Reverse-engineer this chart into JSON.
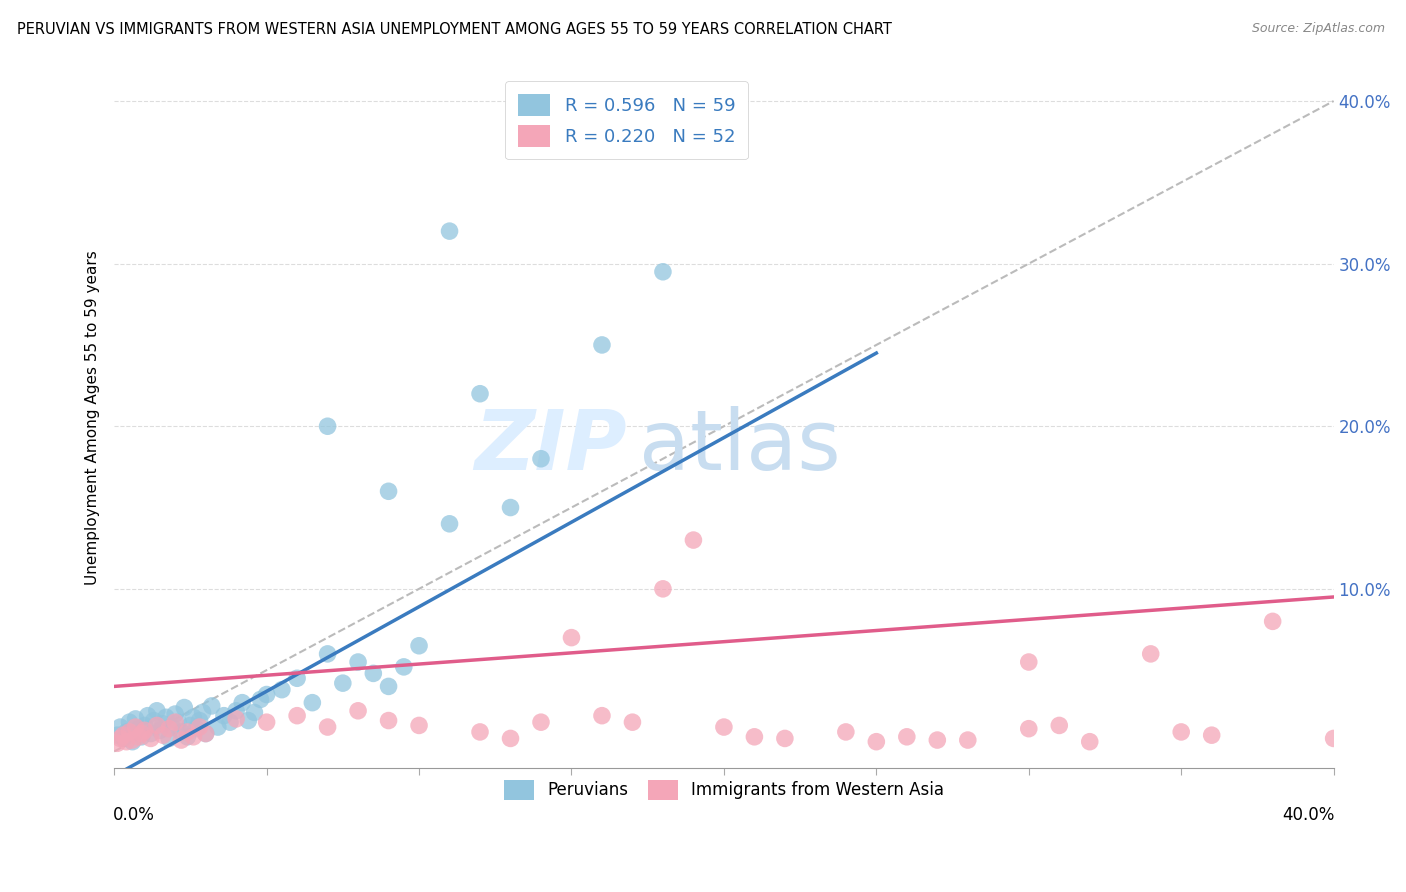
{
  "title": "PERUVIAN VS IMMIGRANTS FROM WESTERN ASIA UNEMPLOYMENT AMONG AGES 55 TO 59 YEARS CORRELATION CHART",
  "source": "Source: ZipAtlas.com",
  "ylabel": "Unemployment Among Ages 55 to 59 years",
  "x_range": [
    0.0,
    0.4
  ],
  "y_range": [
    -0.01,
    0.42
  ],
  "legend_blue_label": "R = 0.596   N = 59",
  "legend_pink_label": "R = 0.220   N = 52",
  "legend_bottom_blue": "Peruvians",
  "legend_bottom_pink": "Immigrants from Western Asia",
  "blue_color": "#92c5de",
  "pink_color": "#f4a6b8",
  "blue_line_color": "#3a7bbf",
  "pink_line_color": "#e05c8a",
  "ref_line_color": "#bbbbbb",
  "grid_color": "#dddddd",
  "blue_x": [
    0.001,
    0.002,
    0.003,
    0.004,
    0.005,
    0.006,
    0.007,
    0.008,
    0.009,
    0.01,
    0.011,
    0.012,
    0.013,
    0.014,
    0.015,
    0.016,
    0.017,
    0.018,
    0.019,
    0.02,
    0.021,
    0.022,
    0.023,
    0.024,
    0.025,
    0.026,
    0.027,
    0.028,
    0.029,
    0.03,
    0.032,
    0.034,
    0.036,
    0.038,
    0.04,
    0.042,
    0.044,
    0.046,
    0.048,
    0.05,
    0.055,
    0.06,
    0.065,
    0.07,
    0.075,
    0.08,
    0.085,
    0.09,
    0.095,
    0.1,
    0.11,
    0.12,
    0.13,
    0.14,
    0.16,
    0.18,
    0.11,
    0.09,
    0.07
  ],
  "blue_y": [
    0.01,
    0.015,
    0.008,
    0.012,
    0.018,
    0.006,
    0.02,
    0.014,
    0.009,
    0.016,
    0.022,
    0.011,
    0.019,
    0.025,
    0.013,
    0.017,
    0.021,
    0.008,
    0.015,
    0.023,
    0.018,
    0.012,
    0.027,
    0.009,
    0.016,
    0.021,
    0.014,
    0.019,
    0.024,
    0.011,
    0.028,
    0.015,
    0.022,
    0.018,
    0.025,
    0.03,
    0.019,
    0.024,
    0.032,
    0.035,
    0.038,
    0.045,
    0.03,
    0.06,
    0.042,
    0.055,
    0.048,
    0.04,
    0.052,
    0.065,
    0.14,
    0.22,
    0.15,
    0.18,
    0.25,
    0.295,
    0.32,
    0.16,
    0.2
  ],
  "pink_x": [
    0.001,
    0.002,
    0.003,
    0.004,
    0.005,
    0.006,
    0.007,
    0.008,
    0.009,
    0.01,
    0.012,
    0.014,
    0.016,
    0.018,
    0.02,
    0.022,
    0.024,
    0.026,
    0.028,
    0.03,
    0.04,
    0.05,
    0.06,
    0.07,
    0.08,
    0.09,
    0.1,
    0.12,
    0.14,
    0.16,
    0.18,
    0.2,
    0.22,
    0.24,
    0.26,
    0.28,
    0.3,
    0.32,
    0.34,
    0.36,
    0.38,
    0.4,
    0.15,
    0.17,
    0.25,
    0.3,
    0.35,
    0.13,
    0.19,
    0.21,
    0.27,
    0.31
  ],
  "pink_y": [
    0.005,
    0.008,
    0.01,
    0.006,
    0.012,
    0.007,
    0.015,
    0.009,
    0.011,
    0.013,
    0.008,
    0.016,
    0.01,
    0.014,
    0.018,
    0.007,
    0.012,
    0.009,
    0.015,
    0.011,
    0.02,
    0.018,
    0.022,
    0.015,
    0.025,
    0.019,
    0.016,
    0.012,
    0.018,
    0.022,
    0.1,
    0.015,
    0.008,
    0.012,
    0.009,
    0.007,
    0.014,
    0.006,
    0.06,
    0.01,
    0.08,
    0.008,
    0.07,
    0.018,
    0.006,
    0.055,
    0.012,
    0.008,
    0.13,
    0.009,
    0.007,
    0.016
  ],
  "blue_line_x0": 0.0,
  "blue_line_y0": -0.015,
  "blue_line_x1": 0.25,
  "blue_line_y1": 0.245,
  "pink_line_x0": 0.0,
  "pink_line_y0": 0.04,
  "pink_line_x1": 0.4,
  "pink_line_y1": 0.095
}
